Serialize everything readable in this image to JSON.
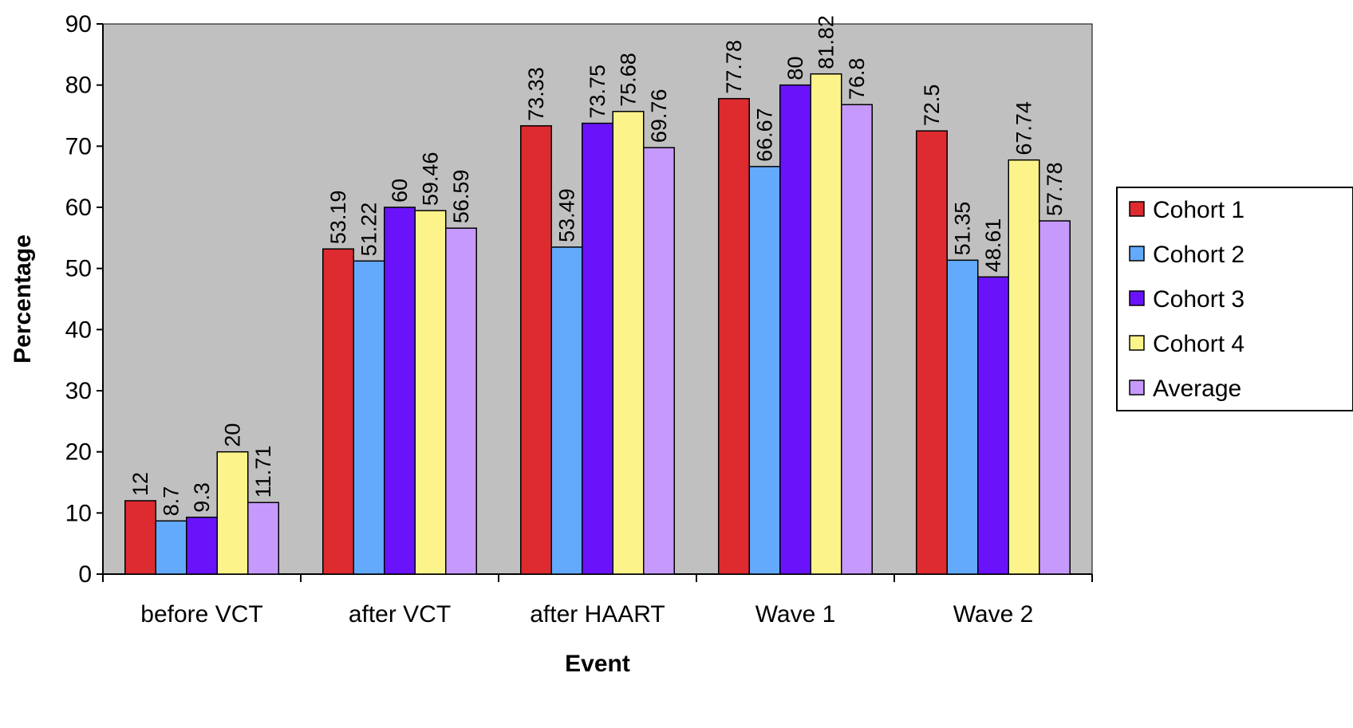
{
  "chart_data": {
    "type": "bar",
    "title": "",
    "xlabel": "Event",
    "ylabel": "Percentage",
    "ylim": [
      0,
      90
    ],
    "yticks": [
      "0",
      "10",
      "20",
      "30",
      "40",
      "50",
      "60",
      "70",
      "80",
      "90"
    ],
    "categories": [
      "before VCT",
      "after VCT",
      "after HAART",
      "Wave 1",
      "Wave 2"
    ],
    "series": [
      {
        "name": "Cohort 1",
        "color": "#dd2b30",
        "values": [
          12,
          53.19,
          73.33,
          77.78,
          72.5
        ],
        "labels": [
          "12",
          "53.19",
          "73.33",
          "77.78",
          "72.5"
        ]
      },
      {
        "name": "Cohort 2",
        "color": "#63aafd",
        "values": [
          8.7,
          51.22,
          53.49,
          66.67,
          51.35
        ],
        "labels": [
          "8.7",
          "51.22",
          "53.49",
          "66.67",
          "51.35"
        ]
      },
      {
        "name": "Cohort 3",
        "color": "#6a13fb",
        "values": [
          9.3,
          60,
          73.75,
          80,
          48.61
        ],
        "labels": [
          "9.3",
          "60",
          "73.75",
          "80",
          "48.61"
        ]
      },
      {
        "name": "Cohort 4",
        "color": "#fdf38b",
        "values": [
          20,
          59.46,
          75.68,
          81.82,
          67.74
        ],
        "labels": [
          "20",
          "59.46",
          "75.68",
          "81.82",
          "67.74"
        ]
      },
      {
        "name": "Average",
        "color": "#c69afd",
        "values": [
          11.71,
          56.59,
          69.76,
          76.8,
          57.78
        ],
        "labels": [
          "11.71",
          "56.59",
          "69.76",
          "76.8",
          "57.78"
        ]
      }
    ],
    "plot_background": "#c0c0c0",
    "grid": false,
    "legend_position": "right"
  }
}
